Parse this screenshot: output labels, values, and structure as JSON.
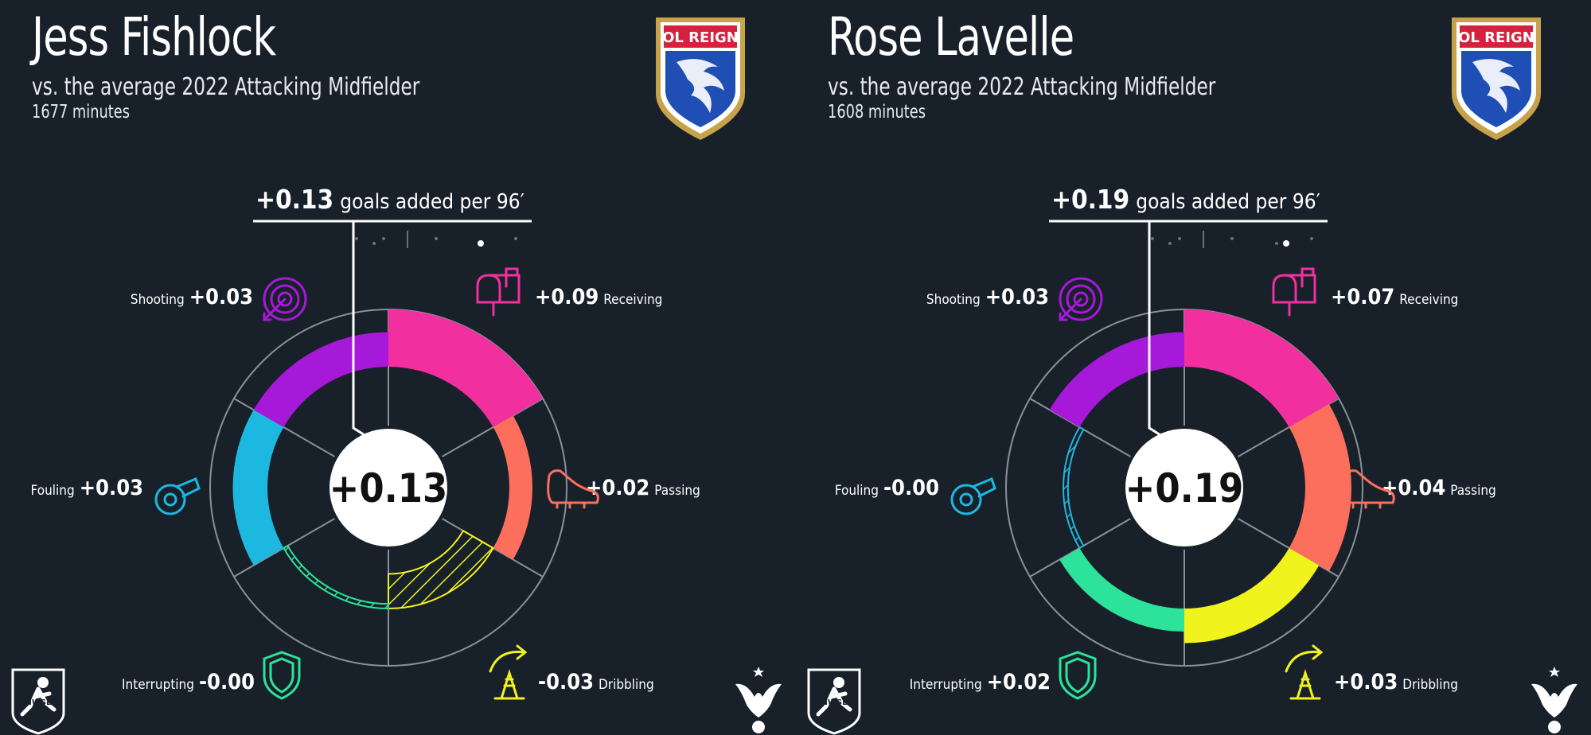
{
  "chart_data": [
    {
      "type": "radial-bar",
      "player": "Jess Fishlock",
      "subtitle": "vs. the average 2022 Attacking Midfielder",
      "minutes": "1677 minutes",
      "club": "OL REIGN",
      "total": "+0.13",
      "total_value": 0.13,
      "headline_unit": "goals added per 96′",
      "categories": [
        {
          "name": "Receiving",
          "label": "+0.09",
          "value": 0.09,
          "color": "#f12f9e",
          "icon": "mailbox-icon"
        },
        {
          "name": "Passing",
          "label": "+0.02",
          "value": 0.02,
          "color": "#fb6f5c",
          "icon": "cleat-icon"
        },
        {
          "name": "Dribbling",
          "label": "-0.03",
          "value": -0.03,
          "color": "#f0f31c",
          "icon": "cone-icon"
        },
        {
          "name": "Interrupting",
          "label": "-0.00",
          "value": -0.004,
          "color": "#2de29a",
          "icon": "shield-icon"
        },
        {
          "name": "Fouling",
          "label": "+0.03",
          "value": 0.03,
          "color": "#1db8e0",
          "icon": "whistle-icon"
        },
        {
          "name": "Shooting",
          "label": "+0.03",
          "value": 0.03,
          "color": "#a619d8",
          "icon": "target-icon"
        }
      ]
    },
    {
      "type": "radial-bar",
      "player": "Rose Lavelle",
      "subtitle": "vs. the average 2022 Attacking Midfielder",
      "minutes": "1608 minutes",
      "club": "OL REIGN",
      "total": "+0.19",
      "total_value": 0.19,
      "headline_unit": "goals added per 96′",
      "categories": [
        {
          "name": "Receiving",
          "label": "+0.07",
          "value": 0.07,
          "color": "#f12f9e",
          "icon": "mailbox-icon"
        },
        {
          "name": "Passing",
          "label": "+0.04",
          "value": 0.04,
          "color": "#fb6f5c",
          "icon": "cleat-icon"
        },
        {
          "name": "Dribbling",
          "label": "+0.03",
          "value": 0.03,
          "color": "#f0f31c",
          "icon": "cone-icon"
        },
        {
          "name": "Interrupting",
          "label": "+0.02",
          "value": 0.02,
          "color": "#2de29a",
          "icon": "shield-icon"
        },
        {
          "name": "Fouling",
          "label": "-0.00",
          "value": -0.004,
          "color": "#1db8e0",
          "icon": "whistle-icon"
        },
        {
          "name": "Shooting",
          "label": "+0.03",
          "value": 0.03,
          "color": "#a619d8",
          "icon": "target-icon"
        }
      ]
    }
  ],
  "colors": {
    "background": "#18202a",
    "ring": "#8a9099",
    "text": "#ffffff"
  },
  "footer": {
    "league_logo": "NWSL",
    "site_logo": "eagle-icon"
  }
}
